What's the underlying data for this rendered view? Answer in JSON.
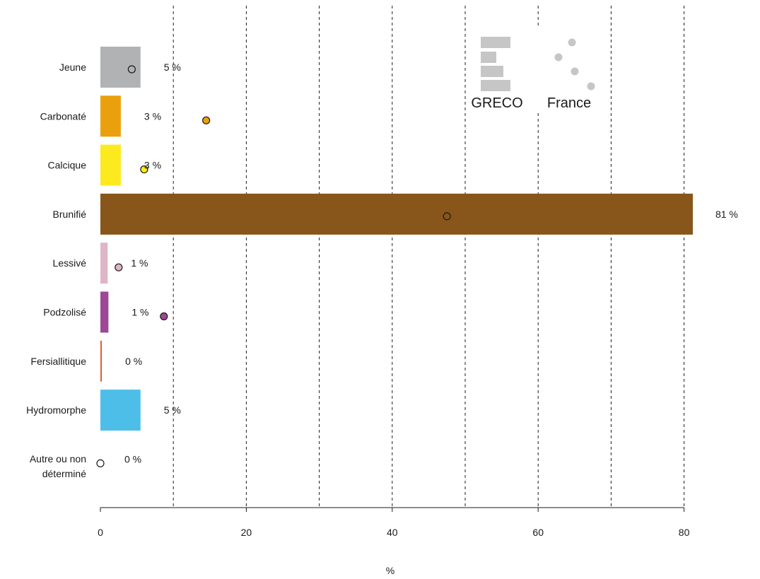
{
  "chart_data": {
    "type": "bar",
    "categories": [
      [
        "Jeune"
      ],
      [
        "Carbonaté"
      ],
      [
        "Calcique"
      ],
      [
        "Brunifié"
      ],
      [
        "Lessivé"
      ],
      [
        "Podzolisé"
      ],
      [
        "Fersiallitique"
      ],
      [
        "Hydromorphe"
      ],
      [
        "Autre ou non",
        "déterminé"
      ]
    ],
    "series": [
      {
        "name": "GRECO",
        "kind": "bar",
        "values": [
          5.5,
          2.8,
          2.8,
          81.2,
          1.0,
          1.1,
          0.2,
          5.5,
          0.0
        ]
      },
      {
        "name": "France",
        "kind": "point",
        "values": [
          4.3,
          14.5,
          6.0,
          47.5,
          2.5,
          8.7,
          null,
          null,
          0.0
        ]
      }
    ],
    "value_labels": [
      "5 %",
      "3 %",
      "3 %",
      "81 %",
      "1 %",
      "1 %",
      "0 %",
      "5 %",
      "0 %"
    ],
    "colors": [
      "#b1b2b4",
      "#eaa00c",
      "#fcea1e",
      "#88561b",
      "#dfb5c8",
      "#9c4894",
      "#e06030",
      "#4dbee8",
      "#ffffff"
    ],
    "xlabel": "%",
    "xlim": [
      0,
      85
    ],
    "xticks": [
      0,
      20,
      40,
      60,
      80
    ],
    "gridlines": [
      10,
      20,
      30,
      40,
      50,
      60,
      70,
      80
    ],
    "grid": true,
    "legend": {
      "position": "top-right",
      "items": [
        {
          "label": "GRECO",
          "symbol": "bars",
          "color": "#c6c6c6"
        },
        {
          "label": "France",
          "symbol": "dots",
          "color": "#c6c6c6"
        }
      ]
    }
  }
}
